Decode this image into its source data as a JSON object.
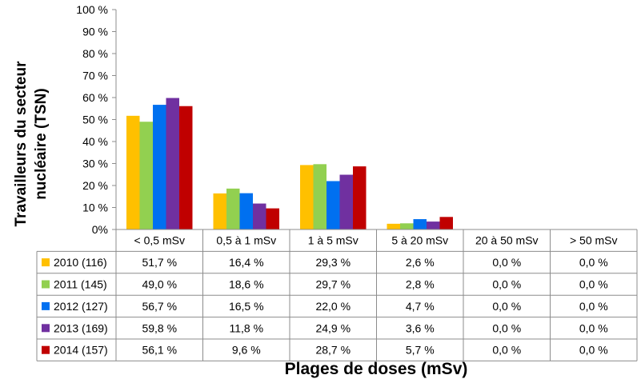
{
  "chart_data": {
    "type": "bar",
    "ylabel_lines": [
      "Travailleurs du secteur",
      "nucléaire (TSN)"
    ],
    "xlabel": "Plages de doses (mSv)",
    "categories": [
      "< 0,5 mSv",
      "0,5 à 1 mSv",
      "1 à 5 mSv",
      "5 à 20 mSv",
      "20 à 50 mSv",
      "> 50 mSv"
    ],
    "ylim": [
      0,
      100
    ],
    "y_ticks": [
      "0%",
      "10 %",
      "20 %",
      "30 %",
      "40 %",
      "50 %",
      "60 %",
      "70 %",
      "80 %",
      "90 %",
      "100 %"
    ],
    "grid": false,
    "legend": "table-below",
    "series": [
      {
        "name": "2010 (116)",
        "color": "#FFC000",
        "values": [
          51.7,
          16.4,
          29.3,
          2.6,
          0.0,
          0.0
        ],
        "labels": [
          "51,7 %",
          "16,4 %",
          "29,3 %",
          "2,6 %",
          "0,0 %",
          "0,0 %"
        ]
      },
      {
        "name": "2011 (145)",
        "color": "#92D050",
        "values": [
          49.0,
          18.6,
          29.7,
          2.8,
          0.0,
          0.0
        ],
        "labels": [
          "49,0 %",
          "18,6 %",
          "29,7 %",
          "2,8 %",
          "0,0 %",
          "0,0 %"
        ]
      },
      {
        "name": "2012 (127)",
        "color": "#0070F0",
        "values": [
          56.7,
          16.5,
          22.0,
          4.7,
          0.0,
          0.0
        ],
        "labels": [
          "56,7 %",
          "16,5 %",
          "22,0 %",
          "4,7 %",
          "0,0 %",
          "0,0 %"
        ]
      },
      {
        "name": "2013 (169)",
        "color": "#7030A0",
        "values": [
          59.8,
          11.8,
          24.9,
          3.6,
          0.0,
          0.0
        ],
        "labels": [
          "59,8 %",
          "11,8 %",
          "24,9 %",
          "3,6 %",
          "0,0 %",
          "0,0 %"
        ]
      },
      {
        "name": "2014 (157)",
        "color": "#C00000",
        "values": [
          56.1,
          9.6,
          28.7,
          5.7,
          0.0,
          0.0
        ],
        "labels": [
          "56,1 %",
          "9,6 %",
          "28,7 %",
          "5,7 %",
          "0,0 %",
          "0,0 %"
        ]
      }
    ]
  }
}
